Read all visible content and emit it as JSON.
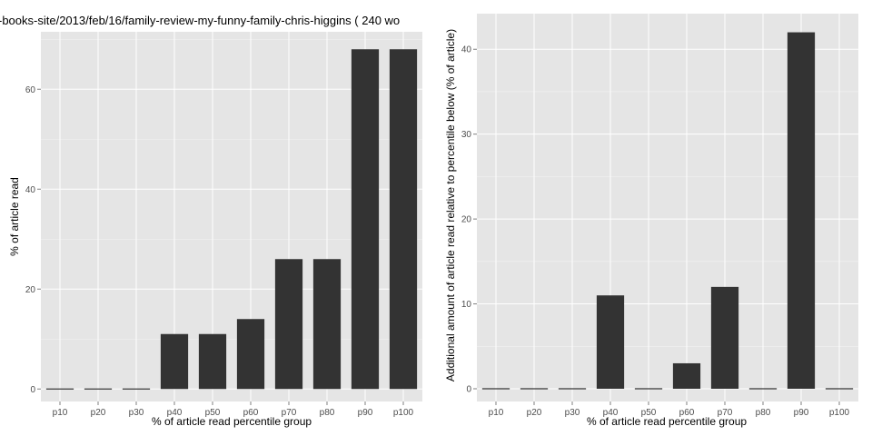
{
  "chart_data": [
    {
      "type": "bar",
      "title": "-books-site/2013/feb/16/family-review-my-funny-family-chris-higgins ( 240 wo",
      "xlabel": "% of article read percentile group",
      "ylabel": "% of article read",
      "categories": [
        "p10",
        "p20",
        "p30",
        "p40",
        "p50",
        "p60",
        "p70",
        "p80",
        "p90",
        "p100"
      ],
      "values": [
        0,
        0,
        0,
        11,
        11,
        14,
        26,
        26,
        68,
        68
      ],
      "ylim": [
        -2.5,
        71.5
      ],
      "yticks": [
        0,
        20,
        40,
        60
      ],
      "grid": true,
      "colors": {
        "bar": "#333333",
        "panel": "#e5e5e5",
        "grid": "#ffffff"
      }
    },
    {
      "type": "bar",
      "title": "",
      "xlabel": "% of article read percentile group",
      "ylabel": "Additional amount of article read relative to percentile below (% of article)",
      "categories": [
        "p10",
        "p20",
        "p30",
        "p40",
        "p50",
        "p60",
        "p70",
        "p80",
        "p90",
        "p100"
      ],
      "values": [
        0,
        0,
        0,
        11,
        0,
        3,
        12,
        0,
        42,
        0
      ],
      "ylim": [
        -1.5,
        44.2
      ],
      "yticks": [
        0,
        10,
        20,
        30,
        40
      ],
      "grid": true,
      "colors": {
        "bar": "#333333",
        "panel": "#e5e5e5",
        "grid": "#ffffff"
      }
    }
  ]
}
